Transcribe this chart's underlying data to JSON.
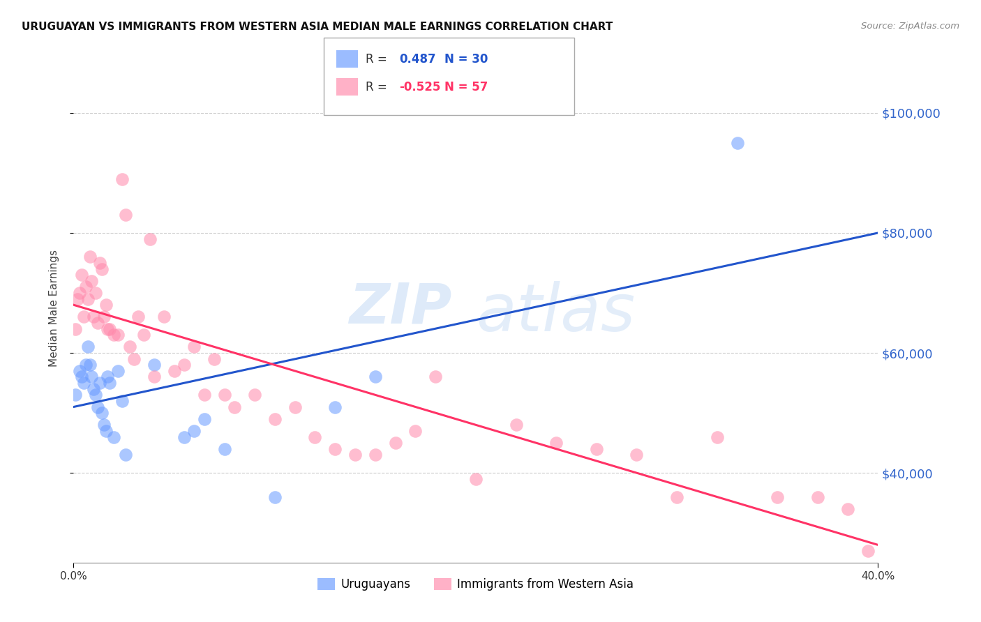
{
  "title": "URUGUAYAN VS IMMIGRANTS FROM WESTERN ASIA MEDIAN MALE EARNINGS CORRELATION CHART",
  "source": "Source: ZipAtlas.com",
  "ylabel": "Median Male Earnings",
  "y_ticks": [
    40000,
    60000,
    80000,
    100000
  ],
  "y_tick_labels": [
    "$40,000",
    "$60,000",
    "$80,000",
    "$100,000"
  ],
  "y_min": 25000,
  "y_max": 110000,
  "x_min": 0.0,
  "x_max": 0.4,
  "blue_R": "0.487",
  "blue_N": "30",
  "pink_R": "-0.525",
  "pink_N": "57",
  "blue_color": "#6699ff",
  "pink_color": "#ff88aa",
  "blue_line_color": "#2255cc",
  "pink_line_color": "#ff3366",
  "watermark_zip": "ZIP",
  "watermark_atlas": "atlas",
  "legend_label_blue": "Uruguayans",
  "legend_label_pink": "Immigrants from Western Asia",
  "blue_scatter_x": [
    0.001,
    0.003,
    0.004,
    0.005,
    0.006,
    0.007,
    0.008,
    0.009,
    0.01,
    0.011,
    0.012,
    0.013,
    0.014,
    0.015,
    0.016,
    0.017,
    0.018,
    0.02,
    0.022,
    0.024,
    0.026,
    0.04,
    0.055,
    0.06,
    0.065,
    0.075,
    0.1,
    0.13,
    0.15,
    0.33
  ],
  "blue_scatter_y": [
    53000,
    57000,
    56000,
    55000,
    58000,
    61000,
    58000,
    56000,
    54000,
    53000,
    51000,
    55000,
    50000,
    48000,
    47000,
    56000,
    55000,
    46000,
    57000,
    52000,
    43000,
    58000,
    46000,
    47000,
    49000,
    44000,
    36000,
    51000,
    56000,
    95000
  ],
  "pink_scatter_x": [
    0.001,
    0.002,
    0.003,
    0.004,
    0.005,
    0.006,
    0.007,
    0.008,
    0.009,
    0.01,
    0.011,
    0.012,
    0.013,
    0.014,
    0.015,
    0.016,
    0.017,
    0.018,
    0.02,
    0.022,
    0.024,
    0.026,
    0.028,
    0.03,
    0.032,
    0.035,
    0.038,
    0.04,
    0.045,
    0.05,
    0.055,
    0.06,
    0.065,
    0.07,
    0.075,
    0.08,
    0.09,
    0.1,
    0.11,
    0.12,
    0.13,
    0.14,
    0.15,
    0.16,
    0.17,
    0.18,
    0.2,
    0.22,
    0.24,
    0.26,
    0.28,
    0.3,
    0.32,
    0.35,
    0.37,
    0.385,
    0.395
  ],
  "pink_scatter_y": [
    64000,
    69000,
    70000,
    73000,
    66000,
    71000,
    69000,
    76000,
    72000,
    66000,
    70000,
    65000,
    75000,
    74000,
    66000,
    68000,
    64000,
    64000,
    63000,
    63000,
    89000,
    83000,
    61000,
    59000,
    66000,
    63000,
    79000,
    56000,
    66000,
    57000,
    58000,
    61000,
    53000,
    59000,
    53000,
    51000,
    53000,
    49000,
    51000,
    46000,
    44000,
    43000,
    43000,
    45000,
    47000,
    56000,
    39000,
    48000,
    45000,
    44000,
    43000,
    36000,
    46000,
    36000,
    36000,
    34000,
    27000
  ],
  "blue_line_x": [
    0.0,
    0.4
  ],
  "blue_line_y": [
    51000,
    80000
  ],
  "pink_line_x": [
    0.0,
    0.4
  ],
  "pink_line_y": [
    68000,
    28000
  ]
}
